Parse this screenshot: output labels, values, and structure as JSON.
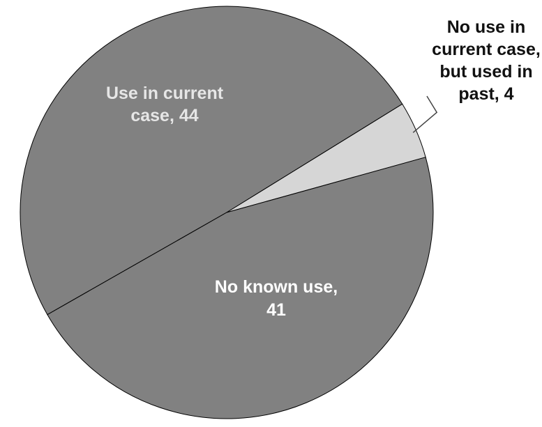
{
  "chart_data": {
    "type": "pie",
    "slices": [
      {
        "label_lines": [
          "Use in current",
          "case, 44"
        ],
        "value": 44,
        "color": "#818181",
        "label_color": "#e6e6e6"
      },
      {
        "label_lines": [
          "No use in",
          "current case,",
          "but used in",
          "past, 4"
        ],
        "value": 4,
        "color": "#d6d6d6",
        "label_color": "#111111"
      },
      {
        "label_lines": [
          "No known use,",
          "41"
        ],
        "value": 41,
        "color": "#818181",
        "label_color": "#ffffff"
      }
    ],
    "border_color": "#000000"
  }
}
